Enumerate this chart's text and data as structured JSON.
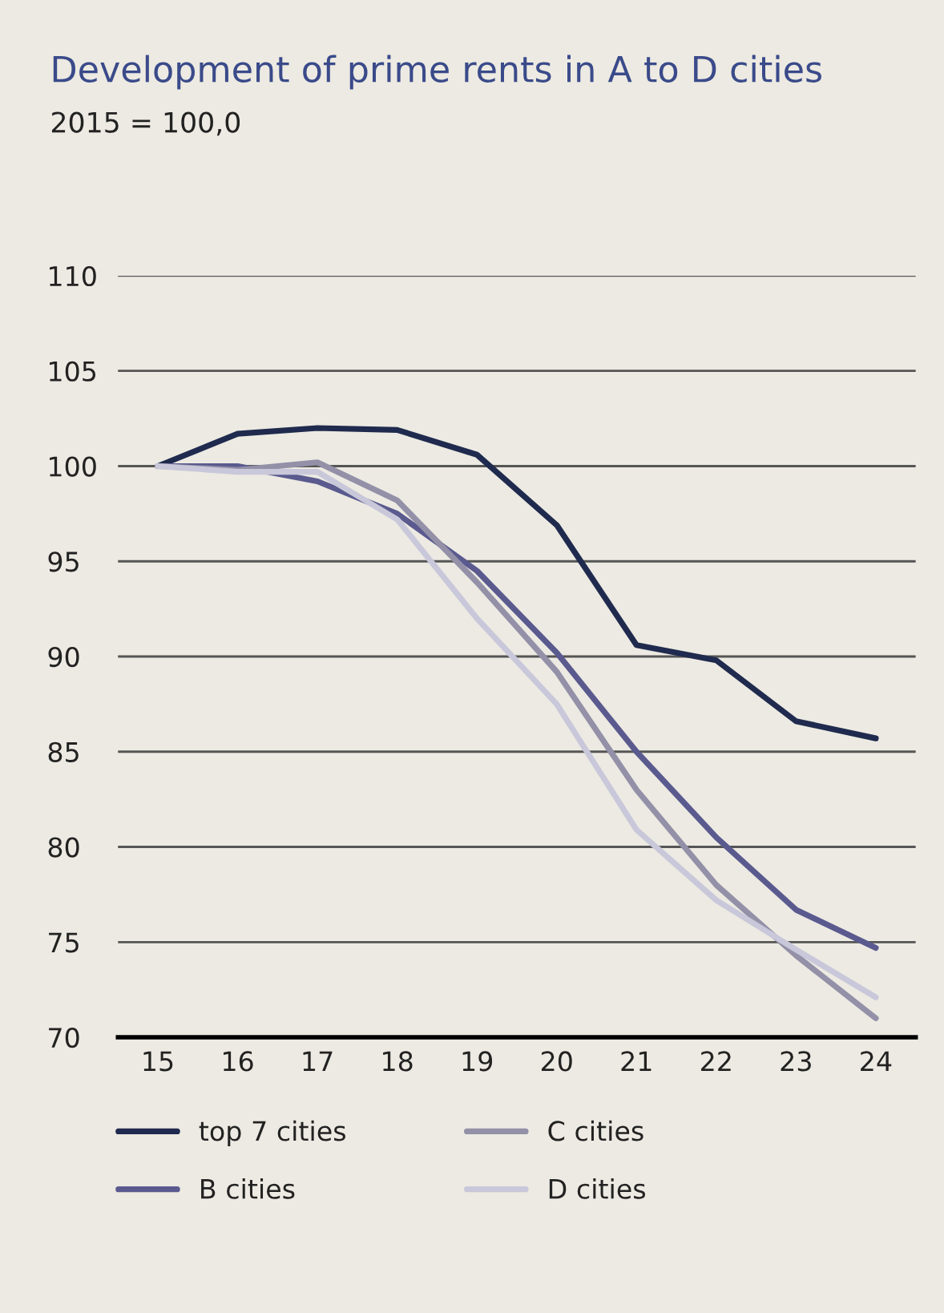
{
  "chart_data": {
    "type": "line",
    "title": "Development of prime rents in A to D cities",
    "subtitle": "2015 = 100,0",
    "categories": [
      "15",
      "16",
      "17",
      "18",
      "19",
      "20",
      "21",
      "22",
      "23",
      "24"
    ],
    "series": [
      {
        "name": "top 7 cities",
        "color": "#1f2a4e",
        "values": [
          100,
          101.7,
          102.0,
          101.9,
          100.6,
          96.9,
          90.6,
          89.8,
          86.6,
          85.7
        ]
      },
      {
        "name": "B cities",
        "color": "#5a5a8f",
        "values": [
          100,
          100.0,
          99.2,
          97.5,
          94.5,
          90.2,
          85.0,
          80.5,
          76.7,
          74.7
        ]
      },
      {
        "name": "C cities",
        "color": "#9390a8",
        "values": [
          100,
          99.8,
          100.2,
          98.2,
          93.9,
          89.2,
          83.0,
          78.0,
          74.3,
          71.0
        ]
      },
      {
        "name": "D cities",
        "color": "#c9c8da",
        "values": [
          100,
          99.7,
          99.7,
          97.2,
          92.0,
          87.5,
          80.9,
          77.2,
          74.6,
          72.1
        ]
      }
    ],
    "ylim": [
      70,
      110
    ],
    "yticks": [
      70,
      75,
      80,
      85,
      90,
      95,
      100,
      105,
      110
    ],
    "grid": "y",
    "legend": "bottom",
    "marker": "none",
    "line_style": "solid"
  }
}
